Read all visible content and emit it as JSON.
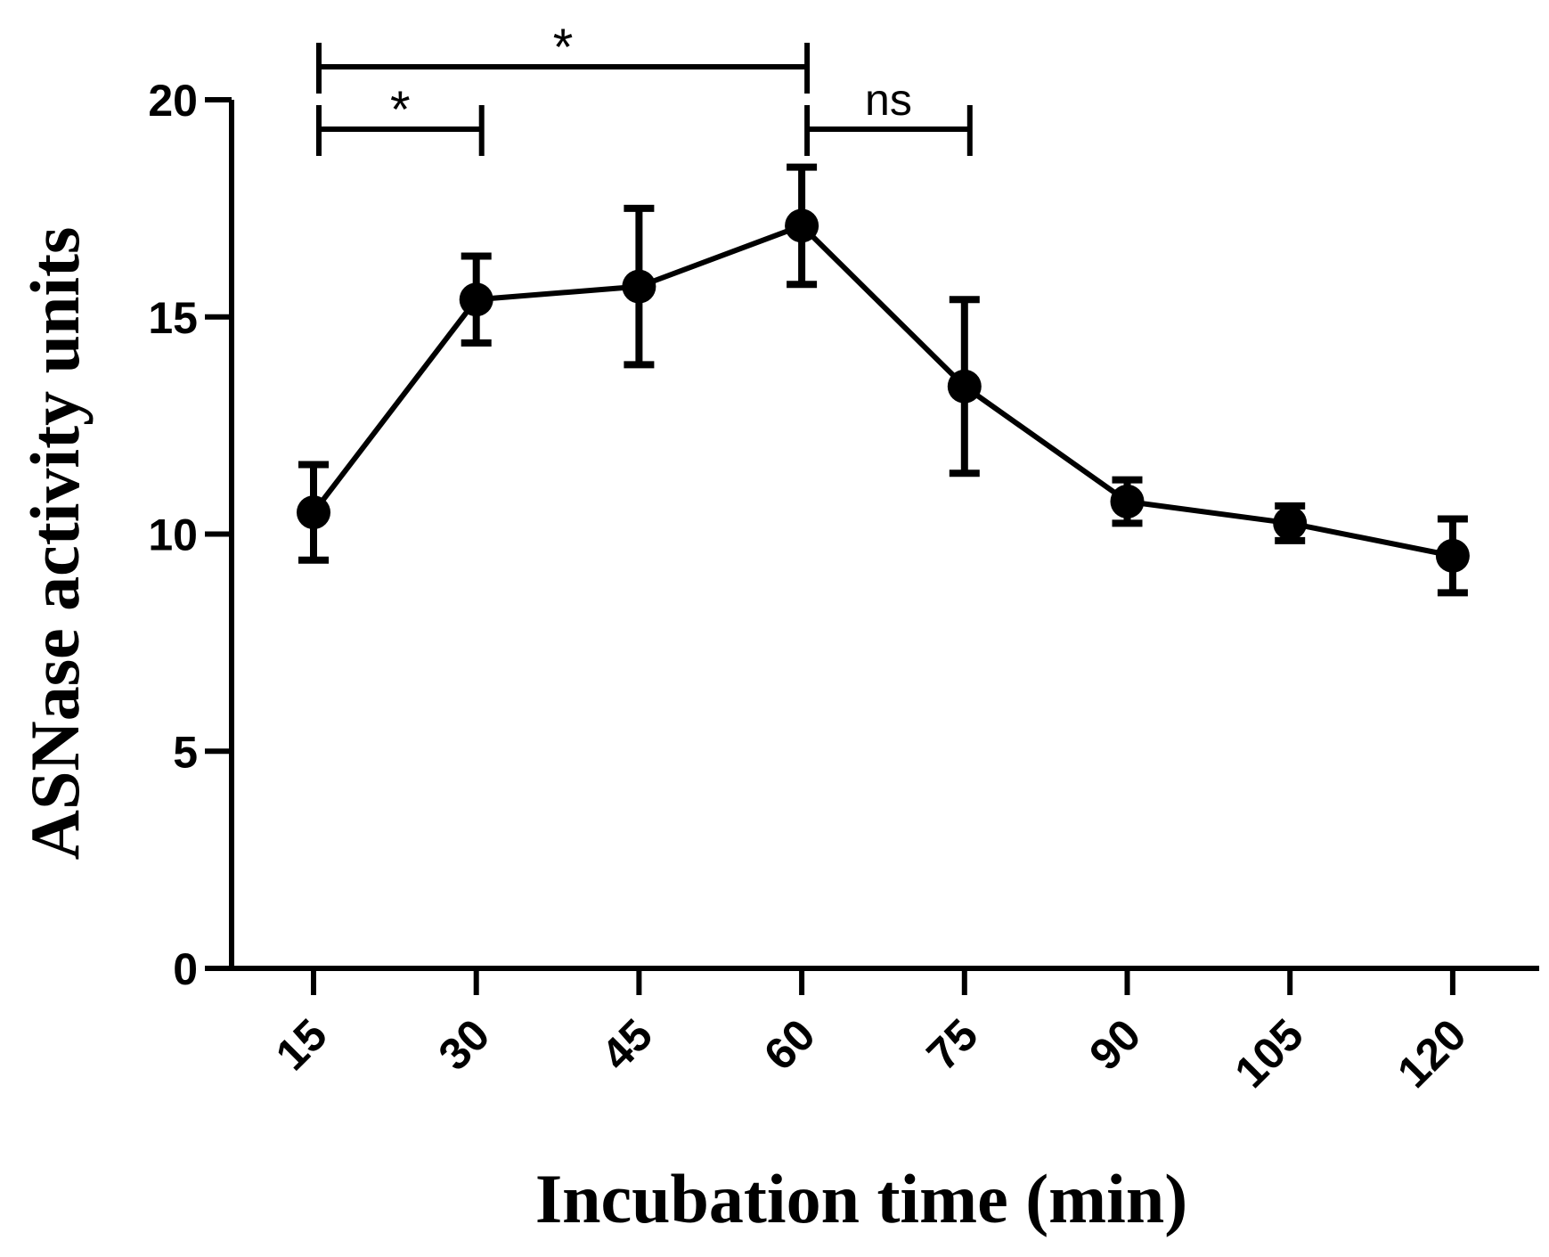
{
  "chart_data": {
    "type": "line",
    "title": "",
    "xlabel": "Incubation time (min)",
    "ylabel": "ASNase activity units",
    "categories": [
      "15",
      "30",
      "45",
      "60",
      "75",
      "90",
      "105",
      "120"
    ],
    "series": [
      {
        "name": "ASNase activity",
        "values": [
          10.5,
          15.4,
          15.7,
          17.1,
          13.4,
          10.75,
          10.25,
          9.5
        ],
        "error": [
          1.1,
          1.0,
          1.8,
          1.35,
          2.0,
          0.5,
          0.4,
          0.85
        ]
      }
    ],
    "ylim": [
      0,
      20
    ],
    "yticks": [
      "0",
      "5",
      "10",
      "15",
      "20"
    ],
    "grid": false,
    "significance": [
      {
        "from": "15",
        "to": "30",
        "label": "*",
        "level": 1
      },
      {
        "from": "15",
        "to": "60",
        "label": "*",
        "level": 2
      },
      {
        "from": "60",
        "to": "75",
        "label": "ns",
        "level": 1
      }
    ]
  }
}
